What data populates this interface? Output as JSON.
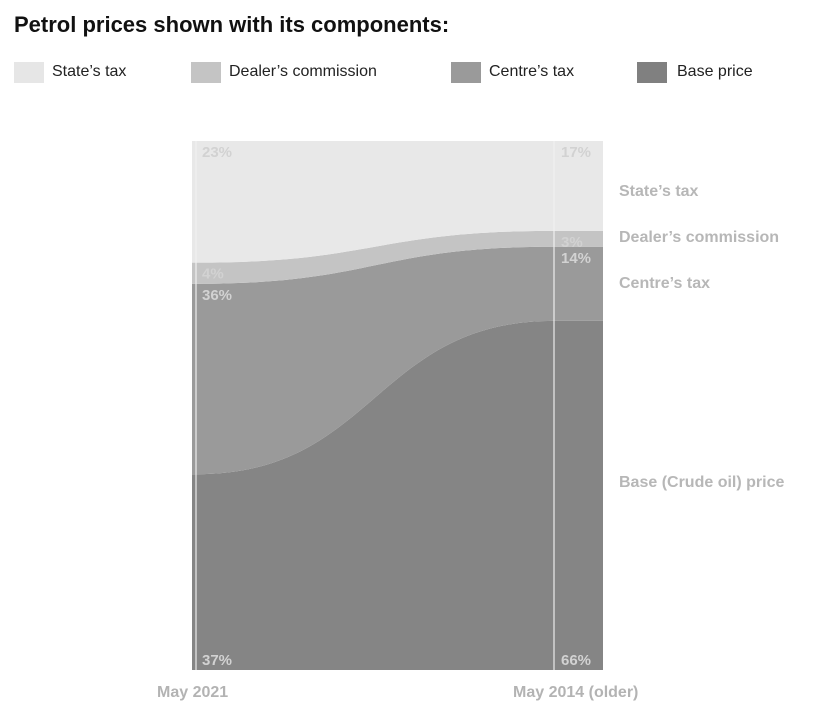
{
  "title": "Petrol prices shown with its components:",
  "legend": [
    {
      "label": "State’s tax",
      "color": "#e6e6e6"
    },
    {
      "label": "Dealer’s commission",
      "color": "#c4c4c4"
    },
    {
      "label": "Centre’s tax",
      "color": "#9a9a9a"
    },
    {
      "label": "Base price",
      "color": "#808080"
    }
  ],
  "chart_data": {
    "type": "area",
    "x": [
      "May 2021",
      "May 2014 (older)"
    ],
    "series": [
      {
        "name": "Base price",
        "values": [
          37,
          66
        ],
        "labels": [
          "37%",
          "66%"
        ],
        "side_label": "Base (Crude oil) price",
        "color": "#858585"
      },
      {
        "name": "Centre’s tax",
        "values": [
          36,
          14
        ],
        "labels": [
          "36%",
          "14%"
        ],
        "side_label": "Centre’s tax",
        "color": "#9a9a9a"
      },
      {
        "name": "Dealer’s commission",
        "values": [
          4,
          3
        ],
        "labels": [
          "4%",
          "3%"
        ],
        "side_label": "Dealer’s commission",
        "color": "#c4c4c4"
      },
      {
        "name": "State’s tax",
        "values": [
          23,
          17
        ],
        "labels": [
          "23%",
          "17%"
        ],
        "side_label": "State’s tax",
        "color": "#e8e8e8"
      }
    ],
    "stacked": true,
    "ylim": [
      0,
      100
    ]
  }
}
